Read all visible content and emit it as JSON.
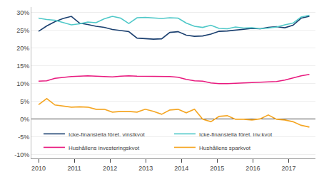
{
  "chart_data": {
    "type": "line",
    "x": [
      2010,
      2010.2297,
      2010.4594,
      2010.6891,
      2010.9188,
      2011.1485,
      2011.3782,
      2011.6079,
      2011.8376,
      2012.0673,
      2012.297,
      2012.5267,
      2012.7564,
      2012.9861,
      2013.2158,
      2013.4455,
      2013.6752,
      2013.9048,
      2014.1345,
      2014.3642,
      2014.5939,
      2014.8236,
      2015.0533,
      2015.283,
      2015.5127,
      2015.7424,
      2015.9721,
      2016.2018,
      2016.4315,
      2016.6612,
      2016.8909,
      2017.1206,
      2017.3503,
      2017.58
    ],
    "series": [
      {
        "name": "Icke-finansiella föret. vinstkvot",
        "color": "#1a3f6f",
        "values": [
          0.247,
          0.262,
          0.274,
          0.283,
          0.289,
          0.27,
          0.266,
          0.261,
          0.258,
          0.252,
          0.249,
          0.246,
          0.228,
          0.227,
          0.225,
          0.226,
          0.244,
          0.246,
          0.236,
          0.233,
          0.234,
          0.239,
          0.247,
          0.248,
          0.25,
          0.252,
          0.255,
          0.254,
          0.258,
          0.26,
          0.257,
          0.264,
          0.284,
          0.289
        ]
      },
      {
        "name": "Icke-finansiella föret. inv.kvot",
        "color": "#4ec8c8",
        "values": [
          0.284,
          0.28,
          0.278,
          0.271,
          0.265,
          0.268,
          0.273,
          0.271,
          0.282,
          0.289,
          0.284,
          0.269,
          0.285,
          0.286,
          0.285,
          0.283,
          0.285,
          0.284,
          0.27,
          0.261,
          0.258,
          0.264,
          0.255,
          0.254,
          0.259,
          0.256,
          0.257,
          0.254,
          0.256,
          0.259,
          0.265,
          0.27,
          0.287,
          0.292
        ]
      },
      {
        "name": "Hushållens investeringskvot",
        "color": "#e8197e",
        "values": [
          0.107,
          0.108,
          0.115,
          0.118,
          0.12,
          0.121,
          0.122,
          0.121,
          0.12,
          0.119,
          0.121,
          0.122,
          0.121,
          0.121,
          0.12,
          0.12,
          0.12,
          0.118,
          0.112,
          0.108,
          0.107,
          0.102,
          0.1,
          0.1,
          0.101,
          0.102,
          0.102,
          0.103,
          0.104,
          0.106,
          0.11,
          0.116,
          0.122,
          0.126
        ]
      },
      {
        "name": "Hushållens sparkvot",
        "color": "#f5a623",
        "values": [
          0.041,
          0.058,
          0.04,
          0.037,
          0.034,
          0.035,
          0.034,
          0.028,
          0.028,
          0.02,
          0.022,
          0.022,
          0.02,
          0.028,
          0.022,
          0.014,
          0.026,
          0.028,
          0.018,
          0.028,
          0.0,
          -0.007,
          0.008,
          0.01,
          0.0,
          0.0,
          -0.002,
          0.001,
          0.012,
          0.0,
          -0.002,
          -0.007,
          -0.017,
          -0.022
        ]
      }
    ],
    "xlim": [
      2009.8,
      2017.75
    ],
    "xticks": [
      2010,
      2011,
      2012,
      2013,
      2014,
      2015,
      2016,
      2017
    ],
    "ylim": [
      -0.11,
      0.315
    ],
    "yticks": [
      {
        "value": -0.1,
        "label": "-10%"
      },
      {
        "value": -0.05,
        "label": "-5%"
      },
      {
        "value": 0.0,
        "label": "0%"
      },
      {
        "value": 0.05,
        "label": "5%"
      },
      {
        "value": 0.1,
        "label": "10%"
      },
      {
        "value": 0.15,
        "label": "15%"
      },
      {
        "value": 0.2,
        "label": "20%"
      },
      {
        "value": 0.25,
        "label": "25%"
      },
      {
        "value": 0.3,
        "label": "30%"
      }
    ],
    "grid": true,
    "legend": "lower left"
  }
}
